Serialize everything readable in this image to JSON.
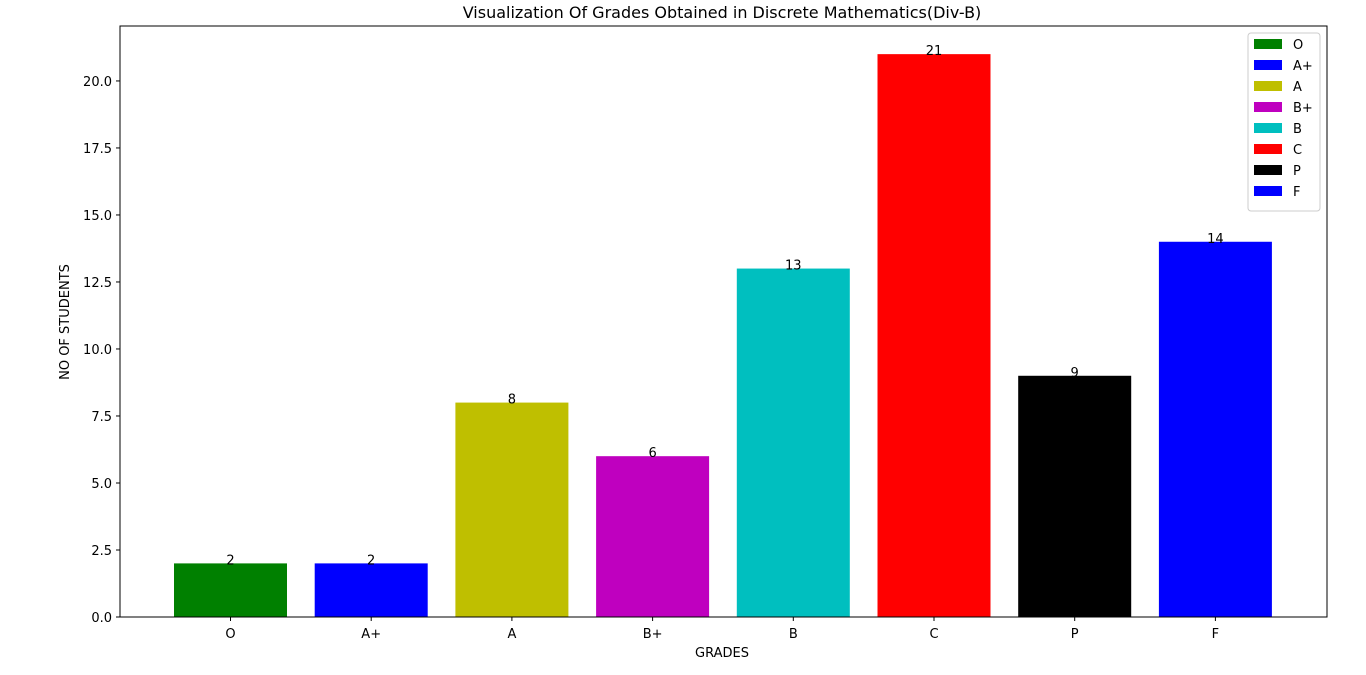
{
  "chart_data": {
    "type": "bar",
    "title": "Visualization Of Grades Obtained in Discrete Mathematics(Div-B)",
    "xlabel": "GRADES",
    "ylabel": "NO OF STUDENTS",
    "categories": [
      "O",
      "A+",
      "A",
      "B+",
      "B",
      "C",
      "P",
      "F"
    ],
    "values": [
      2,
      2,
      8,
      6,
      13,
      21,
      9,
      14
    ],
    "data_labels": [
      "2",
      "2",
      "8",
      "6",
      "13",
      "21",
      "9",
      "14"
    ],
    "colors": [
      "#008000",
      "#0000ff",
      "#bfbf00",
      "#bf00bf",
      "#00bfbf",
      "#ff0000",
      "#000000",
      "#0000ff"
    ],
    "series": [
      {
        "name": "O",
        "color": "#008000"
      },
      {
        "name": "A+",
        "color": "#0000ff"
      },
      {
        "name": "A",
        "color": "#bfbf00"
      },
      {
        "name": "B+",
        "color": "#bf00bf"
      },
      {
        "name": "B",
        "color": "#00bfbf"
      },
      {
        "name": "C",
        "color": "#ff0000"
      },
      {
        "name": "P",
        "color": "#000000"
      },
      {
        "name": "F",
        "color": "#0000ff"
      }
    ],
    "ylim": [
      0,
      22.05
    ],
    "yticks": [
      "0.0",
      "2.5",
      "5.0",
      "7.5",
      "10.0",
      "12.5",
      "15.0",
      "17.5",
      "20.0"
    ],
    "ytick_values": [
      0,
      2.5,
      5,
      7.5,
      10,
      12.5,
      15,
      17.5,
      20
    ],
    "grid": false,
    "legend_position": "top-right"
  }
}
